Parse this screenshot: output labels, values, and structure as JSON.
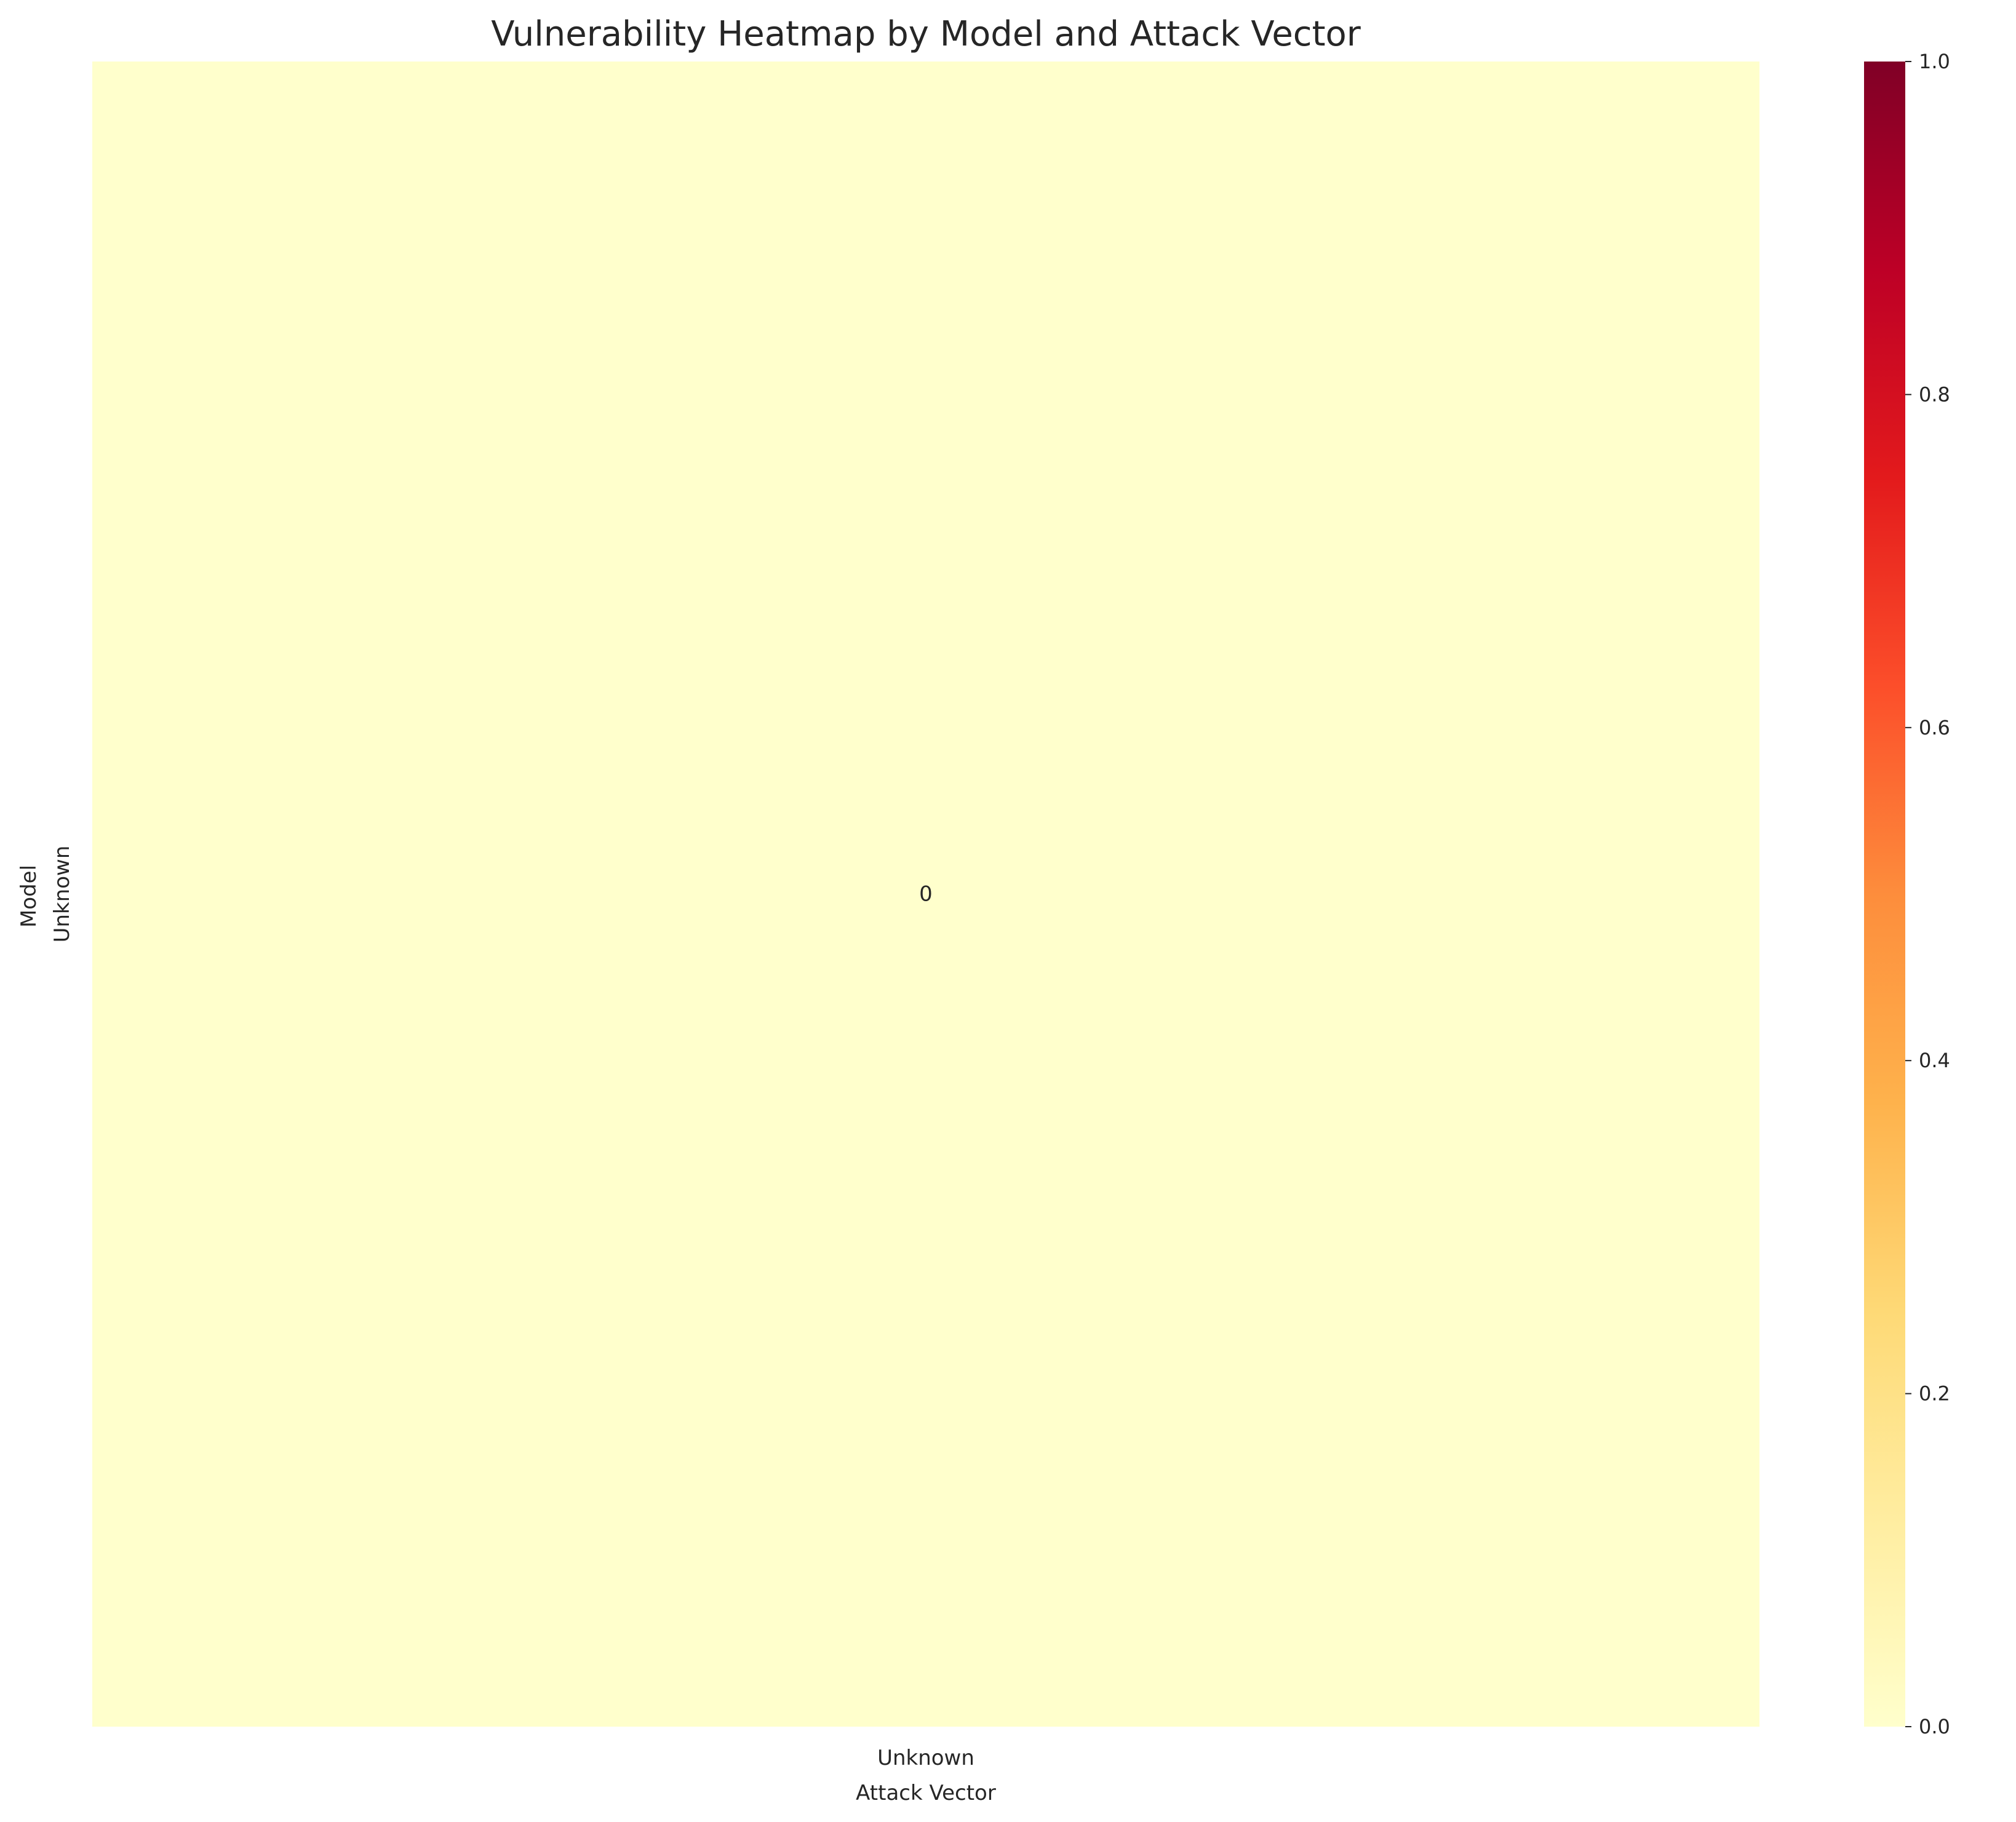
{
  "chart_data": {
    "type": "heatmap",
    "title": "Vulnerability Heatmap by Model and Attack Vector",
    "xlabel": "Attack Vector",
    "ylabel": "Model",
    "x_categories": [
      "Unknown"
    ],
    "y_categories": [
      "Unknown"
    ],
    "values": [
      [
        0
      ]
    ],
    "annotations": [
      [
        "0"
      ]
    ],
    "colorbar": {
      "min": 0.0,
      "max": 1.0,
      "ticks": [
        0.0,
        0.2,
        0.4,
        0.6,
        0.8,
        1.0
      ],
      "tick_labels": [
        "0.0",
        "0.2",
        "0.4",
        "0.6",
        "0.8",
        "1.0"
      ],
      "colormap_stops": [
        {
          "value": 0.0,
          "color": "#ffffcc"
        },
        {
          "value": 0.125,
          "color": "#ffeda0"
        },
        {
          "value": 0.25,
          "color": "#fed976"
        },
        {
          "value": 0.375,
          "color": "#feb24c"
        },
        {
          "value": 0.5,
          "color": "#fd8d3c"
        },
        {
          "value": 0.625,
          "color": "#fc4e2a"
        },
        {
          "value": 0.75,
          "color": "#e31a1c"
        },
        {
          "value": 0.875,
          "color": "#bd0026"
        },
        {
          "value": 1.0,
          "color": "#800026"
        }
      ]
    }
  }
}
